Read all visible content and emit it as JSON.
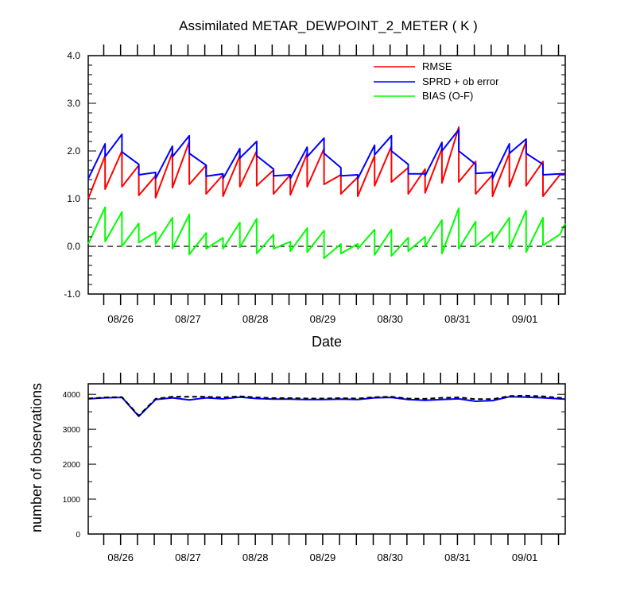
{
  "chart_data": [
    {
      "type": "line",
      "title": "Assimilated METAR_DEWPOINT_2_METER ( K )",
      "xlabel": "Date",
      "ylabel": "",
      "x_tick_labels": [
        "08/26",
        "08/27",
        "08/28",
        "08/29",
        "08/30",
        "08/31",
        "09/01"
      ],
      "x_tick_positions": [
        1,
        2,
        3,
        4,
        5,
        6,
        7
      ],
      "xlim": [
        0.52,
        7.6
      ],
      "ylim": [
        -1.0,
        4.0
      ],
      "y_tick_labels": [
        "-1.0",
        "0.0",
        "1.0",
        "2.0",
        "3.0",
        "4.0"
      ],
      "y_ticks": [
        -1,
        0,
        1,
        2,
        3,
        4
      ],
      "zero_reference_line": true,
      "legend_position": "top-right",
      "series": [
        {
          "name": "RMSE",
          "color": "#ff0000",
          "x": [
            0.52,
            0.52,
            0.77,
            0.77,
            1.02,
            1.02,
            1.27,
            1.27,
            1.52,
            1.52,
            1.77,
            1.77,
            2.02,
            2.02,
            2.27,
            2.27,
            2.52,
            2.52,
            2.77,
            2.77,
            3.02,
            3.02,
            3.27,
            3.27,
            3.52,
            3.52,
            3.77,
            3.77,
            4.02,
            4.02,
            4.27,
            4.27,
            4.52,
            4.52,
            4.77,
            4.77,
            5.02,
            5.02,
            5.27,
            5.27,
            5.52,
            5.52,
            5.77,
            5.77,
            6.02,
            6.02,
            6.27,
            6.27,
            6.52,
            6.52,
            6.77,
            6.77,
            7.02,
            7.02,
            7.27,
            7.27,
            7.52,
            7.52,
            7.6
          ],
          "y": [
            1.0,
            1.0,
            1.9,
            1.2,
            2.0,
            1.25,
            1.7,
            1.07,
            1.48,
            1.02,
            1.97,
            1.23,
            2.2,
            1.3,
            1.7,
            1.1,
            1.5,
            1.05,
            1.9,
            1.25,
            2.0,
            1.27,
            1.6,
            1.1,
            1.5,
            1.08,
            1.95,
            1.25,
            2.05,
            1.3,
            1.5,
            1.1,
            1.45,
            1.05,
            1.9,
            1.27,
            2.1,
            1.35,
            1.65,
            1.1,
            1.62,
            1.12,
            2.05,
            1.33,
            2.5,
            1.35,
            1.78,
            1.1,
            1.5,
            1.05,
            1.95,
            1.25,
            2.2,
            1.27,
            1.78,
            1.05,
            1.5,
            1.5,
            1.5
          ]
        },
        {
          "name": "SPRD + ob error",
          "color": "#0000ff",
          "x": [
            0.52,
            0.77,
            0.77,
            1.02,
            1.02,
            1.27,
            1.27,
            1.52,
            1.52,
            1.77,
            1.77,
            2.02,
            2.02,
            2.27,
            2.27,
            2.52,
            2.52,
            2.77,
            2.77,
            3.02,
            3.02,
            3.27,
            3.27,
            3.52,
            3.52,
            3.77,
            3.77,
            4.02,
            4.02,
            4.27,
            4.27,
            4.52,
            4.52,
            4.77,
            4.77,
            5.02,
            5.02,
            5.27,
            5.27,
            5.52,
            5.52,
            5.77,
            5.77,
            6.02,
            6.02,
            6.27,
            6.27,
            6.52,
            6.52,
            6.77,
            6.77,
            7.02,
            7.02,
            7.27,
            7.27,
            7.52,
            7.52,
            7.6
          ],
          "y": [
            1.42,
            2.15,
            1.88,
            2.35,
            1.98,
            1.72,
            1.5,
            1.55,
            1.42,
            2.1,
            1.88,
            2.32,
            1.95,
            1.7,
            1.47,
            1.52,
            1.42,
            2.05,
            1.85,
            2.2,
            1.9,
            1.62,
            1.48,
            1.5,
            1.42,
            2.08,
            1.88,
            2.27,
            1.95,
            1.65,
            1.48,
            1.5,
            1.42,
            2.12,
            1.92,
            2.32,
            2.0,
            1.72,
            1.52,
            1.52,
            1.48,
            2.18,
            2.0,
            2.45,
            2.0,
            1.72,
            1.53,
            1.55,
            1.42,
            2.15,
            1.95,
            2.25,
            1.95,
            1.72,
            1.5,
            1.52,
            1.52,
            1.52
          ]
        },
        {
          "name": "BIAS (O-F)",
          "color": "#00ff00",
          "x": [
            0.52,
            0.77,
            0.77,
            1.02,
            1.02,
            1.27,
            1.27,
            1.52,
            1.52,
            1.77,
            1.77,
            2.02,
            2.02,
            2.27,
            2.27,
            2.52,
            2.52,
            2.77,
            2.77,
            3.02,
            3.02,
            3.27,
            3.27,
            3.52,
            3.52,
            3.77,
            3.77,
            4.02,
            4.02,
            4.27,
            4.27,
            4.52,
            4.52,
            4.77,
            4.77,
            5.02,
            5.02,
            5.27,
            5.27,
            5.52,
            5.52,
            5.77,
            5.77,
            6.02,
            6.02,
            6.27,
            6.27,
            6.52,
            6.52,
            6.77,
            6.77,
            7.02,
            7.02,
            7.27,
            7.27,
            7.52,
            7.52,
            7.6
          ],
          "y": [
            0.05,
            0.82,
            0.1,
            0.72,
            0.0,
            0.48,
            0.08,
            0.3,
            0.05,
            0.6,
            -0.05,
            0.67,
            -0.17,
            0.28,
            -0.05,
            0.18,
            -0.05,
            0.5,
            -0.02,
            0.58,
            -0.15,
            0.25,
            -0.05,
            0.1,
            -0.1,
            0.38,
            -0.12,
            0.33,
            -0.25,
            0.05,
            -0.15,
            0.05,
            -0.05,
            0.35,
            -0.18,
            0.35,
            -0.2,
            0.18,
            -0.1,
            0.2,
            0.0,
            0.55,
            -0.15,
            0.8,
            -0.05,
            0.52,
            0.0,
            0.3,
            0.08,
            0.6,
            -0.05,
            0.75,
            -0.12,
            0.6,
            0.02,
            0.25,
            0.25,
            0.48
          ]
        }
      ]
    },
    {
      "type": "line",
      "title": "",
      "xlabel": "",
      "ylabel": "number of observations",
      "x_tick_labels": [
        "08/26",
        "08/27",
        "08/28",
        "08/29",
        "08/30",
        "08/31",
        "09/01"
      ],
      "x_tick_positions": [
        1,
        2,
        3,
        4,
        5,
        6,
        7
      ],
      "xlim": [
        0.52,
        7.6
      ],
      "ylim": [
        0,
        4300
      ],
      "y_tick_labels": [
        "0",
        "1000",
        "2000",
        "3000",
        "4000"
      ],
      "y_ticks": [
        0,
        1000,
        2000,
        3000,
        4000
      ],
      "series": [
        {
          "name": "",
          "color": "#0000ff",
          "style": "solid",
          "x": [
            0.52,
            0.77,
            1.02,
            1.27,
            1.52,
            1.77,
            2.02,
            2.27,
            2.52,
            2.77,
            3.02,
            3.27,
            3.52,
            3.77,
            4.02,
            4.27,
            4.52,
            4.77,
            5.02,
            5.27,
            5.52,
            5.77,
            6.02,
            6.27,
            6.52,
            6.77,
            7.02,
            7.27,
            7.52,
            7.6
          ],
          "y": [
            3870,
            3900,
            3910,
            3370,
            3850,
            3900,
            3840,
            3900,
            3870,
            3920,
            3880,
            3860,
            3860,
            3850,
            3850,
            3860,
            3850,
            3900,
            3910,
            3850,
            3830,
            3850,
            3870,
            3800,
            3820,
            3930,
            3920,
            3900,
            3870,
            3860
          ]
        },
        {
          "name": "",
          "color": "#000000",
          "style": "dashed",
          "x": [
            0.52,
            0.77,
            1.02,
            1.27,
            1.52,
            1.77,
            2.02,
            2.27,
            2.52,
            2.77,
            3.02,
            3.27,
            3.52,
            3.77,
            4.02,
            4.27,
            4.52,
            4.77,
            5.02,
            5.27,
            5.52,
            5.77,
            6.02,
            6.27,
            6.52,
            6.77,
            7.02,
            7.27,
            7.52,
            7.6
          ],
          "y": [
            3880,
            3910,
            3920,
            3390,
            3870,
            3930,
            3930,
            3930,
            3910,
            3940,
            3910,
            3890,
            3890,
            3880,
            3880,
            3890,
            3880,
            3920,
            3930,
            3880,
            3870,
            3900,
            3910,
            3860,
            3860,
            3950,
            3960,
            3940,
            3900,
            3880
          ]
        }
      ]
    }
  ]
}
